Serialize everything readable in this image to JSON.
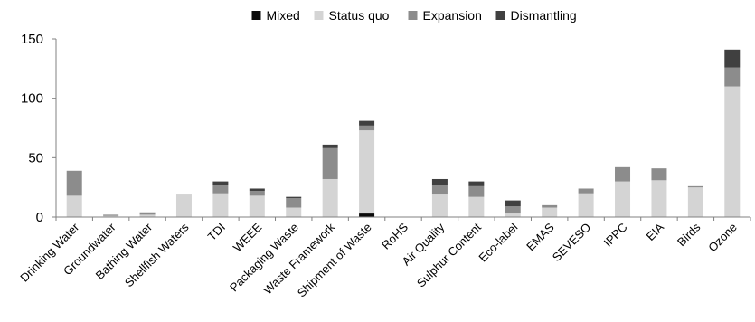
{
  "chart_data": {
    "type": "bar",
    "stacked": true,
    "title": "",
    "xlabel": "",
    "ylabel": "",
    "ylim": [
      0,
      150
    ],
    "yticks": [
      0,
      50,
      100,
      150
    ],
    "grid": false,
    "legend_position": "top-center",
    "categories": [
      "Drinking Water",
      "Groundwater",
      "Bathing Water",
      "Shellfish Waters",
      "TDI",
      "WEEE",
      "Packaging Waste",
      "Waste Framework",
      "Shipment of Waste",
      "RoHS",
      "Air Quality",
      "Sulphur Content",
      "Eco-label",
      "EMAS",
      "SEVESO",
      "IPPC",
      "EIA",
      "Birds",
      "Ozone"
    ],
    "series": [
      {
        "name": "Mixed",
        "color": "#0a0a0a",
        "values": [
          0,
          0,
          0,
          0,
          0,
          0,
          0,
          0,
          3,
          0,
          0,
          0,
          0,
          0,
          0,
          0,
          0,
          0,
          0
        ]
      },
      {
        "name": "Status quo",
        "color": "#d4d4d4",
        "values": [
          18,
          1,
          2,
          19,
          20,
          18,
          8,
          32,
          70,
          0,
          19,
          17,
          3,
          8,
          20,
          30,
          31,
          25,
          110
        ]
      },
      {
        "name": "Expansion",
        "color": "#8c8c8c",
        "values": [
          21,
          1,
          2,
          0,
          7,
          4,
          8,
          26,
          4,
          0,
          8,
          9,
          6,
          2,
          4,
          12,
          10,
          1,
          16
        ]
      },
      {
        "name": "Dismantling",
        "color": "#404040",
        "values": [
          0,
          0,
          0,
          0,
          3,
          2,
          1,
          3,
          4,
          0,
          5,
          4,
          5,
          0,
          0,
          0,
          0,
          0,
          15
        ]
      }
    ]
  }
}
